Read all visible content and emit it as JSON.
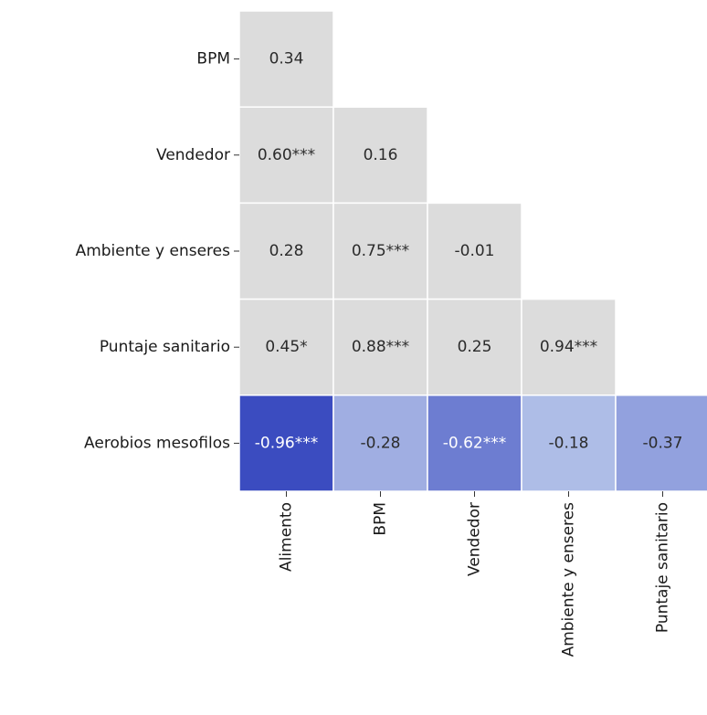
{
  "chart_data": {
    "type": "heatmap",
    "title": "",
    "xlabel": "",
    "ylabel": "",
    "x_categories": [
      "Alimento",
      "BPM",
      "Vendedor",
      "Ambiente y enseres",
      "Puntaje sanitario"
    ],
    "y_categories": [
      "BPM",
      "Vendedor",
      "Ambiente y enseres",
      "Puntaje sanitario",
      "Aerobios mesofilos"
    ],
    "masked": "upper-triangle",
    "highlighted_row": "Aerobios mesofilos",
    "cells": [
      {
        "row": "BPM",
        "col": "Alimento",
        "value": 0.34,
        "label": "0.34"
      },
      {
        "row": "Vendedor",
        "col": "Alimento",
        "value": 0.6,
        "label": "0.60***"
      },
      {
        "row": "Vendedor",
        "col": "BPM",
        "value": 0.16,
        "label": "0.16"
      },
      {
        "row": "Ambiente y enseres",
        "col": "Alimento",
        "value": 0.28,
        "label": "0.28"
      },
      {
        "row": "Ambiente y enseres",
        "col": "BPM",
        "value": 0.75,
        "label": "0.75***"
      },
      {
        "row": "Ambiente y enseres",
        "col": "Vendedor",
        "value": -0.01,
        "label": "-0.01"
      },
      {
        "row": "Puntaje sanitario",
        "col": "Alimento",
        "value": 0.45,
        "label": "0.45*"
      },
      {
        "row": "Puntaje sanitario",
        "col": "BPM",
        "value": 0.88,
        "label": "0.88***"
      },
      {
        "row": "Puntaje sanitario",
        "col": "Vendedor",
        "value": 0.25,
        "label": "0.25"
      },
      {
        "row": "Puntaje sanitario",
        "col": "Ambiente y enseres",
        "value": 0.94,
        "label": "0.94***"
      },
      {
        "row": "Aerobios mesofilos",
        "col": "Alimento",
        "value": -0.96,
        "label": "-0.96***"
      },
      {
        "row": "Aerobios mesofilos",
        "col": "BPM",
        "value": -0.28,
        "label": "-0.28"
      },
      {
        "row": "Aerobios mesofilos",
        "col": "Vendedor",
        "value": -0.62,
        "label": "-0.62***"
      },
      {
        "row": "Aerobios mesofilos",
        "col": "Ambiente y enseres",
        "value": -0.18,
        "label": "-0.18"
      },
      {
        "row": "Aerobios mesofilos",
        "col": "Puntaje sanitario",
        "value": -0.37,
        "label": "-0.37"
      }
    ],
    "colors": {
      "neutral_cell": "#dcdcdc",
      "grid_line": "#ffffff",
      "scale_negative_strong": "#3b4cc0",
      "scale_negative_weak": "#c9d7f0",
      "text_dark": "#2b2b2b",
      "text_light": "#ffffff"
    },
    "legend": "none",
    "grid": false
  }
}
